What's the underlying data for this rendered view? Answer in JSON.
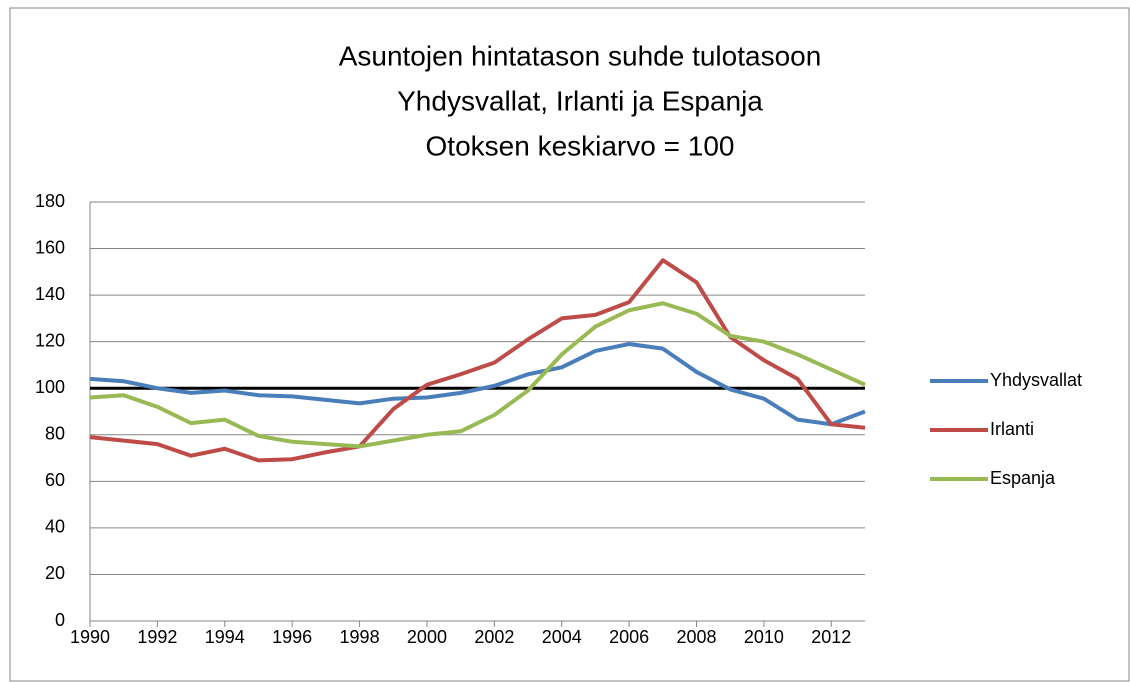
{
  "chart_data": {
    "type": "line",
    "title": [
      "Asuntojen hintatason suhde tulotasoon",
      "Yhdysvallat, Irlanti ja Espanja",
      "Otoksen keskiarvo = 100"
    ],
    "x": [
      1990,
      1991,
      1992,
      1993,
      1994,
      1995,
      1996,
      1997,
      1998,
      1999,
      2000,
      2001,
      2002,
      2003,
      2004,
      2005,
      2006,
      2007,
      2008,
      2009,
      2010,
      2011,
      2012,
      2013
    ],
    "series": [
      {
        "name": "Yhdysvallat",
        "color": "#4a7ebb",
        "values": [
          104,
          103,
          100,
          98,
          99,
          97,
          96.5,
          95,
          93.5,
          95.5,
          96,
          98,
          101,
          106,
          109,
          116,
          119,
          117,
          107,
          99.5,
          95.5,
          86.5,
          84.5,
          90
        ]
      },
      {
        "name": "Irlanti",
        "color": "#be4b48",
        "values": [
          79,
          77.5,
          76,
          71,
          74,
          69,
          69.5,
          72.5,
          75,
          91,
          101.5,
          106,
          111,
          121,
          130,
          131.5,
          137,
          155,
          145.5,
          122,
          112,
          104,
          84.5,
          83
        ]
      },
      {
        "name": "Espanja",
        "color": "#98b954",
        "values": [
          96,
          97,
          92,
          85,
          86.5,
          79.5,
          77,
          76,
          75,
          77.5,
          80,
          81.5,
          88.5,
          99,
          114.5,
          126.5,
          133.5,
          136.5,
          132,
          122.5,
          120,
          114.5,
          108,
          101.5
        ]
      }
    ],
    "reference_line": 100,
    "xlim": [
      1990,
      2013
    ],
    "xticks": [
      1990,
      1992,
      1994,
      1996,
      1998,
      2000,
      2002,
      2004,
      2006,
      2008,
      2010,
      2012
    ],
    "ylim": [
      0,
      180
    ],
    "yticks": [
      0,
      20,
      40,
      60,
      80,
      100,
      120,
      140,
      160,
      180
    ],
    "grid": true,
    "legend": "right"
  }
}
